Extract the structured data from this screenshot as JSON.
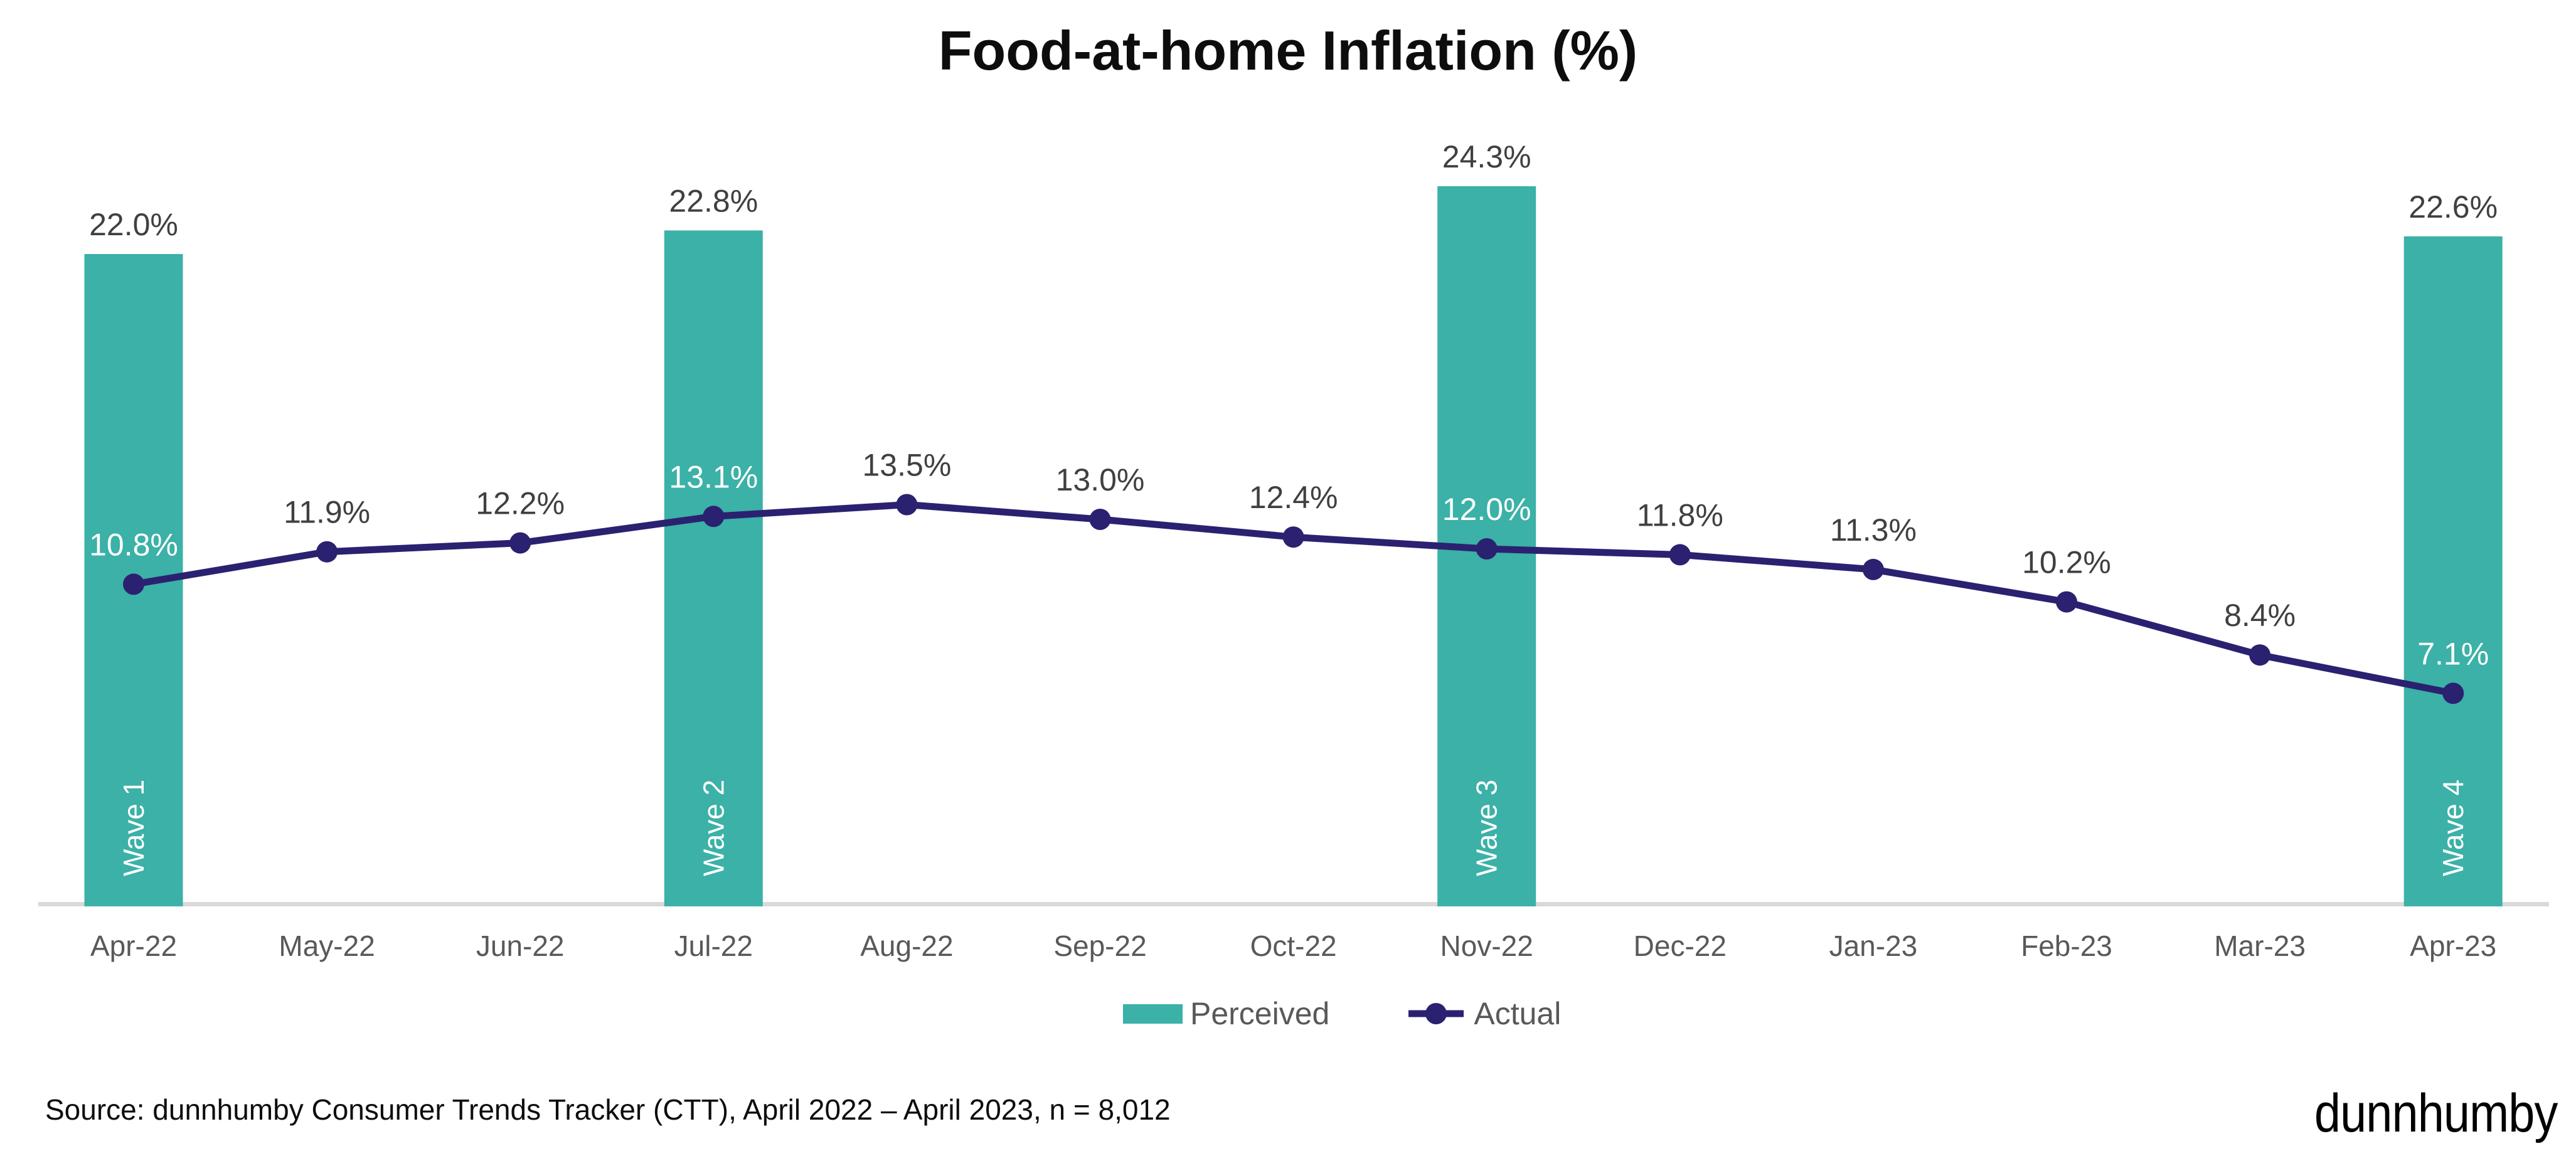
{
  "title": "Food-at-home Inflation (%)",
  "source_note": "Source: dunnhumby Consumer Trends Tracker (CTT), April 2022 – April 2023, n = 8,012",
  "brand_logo": "dunnhumby",
  "legend": {
    "perceived_label": "Perceived",
    "actual_label": "Actual",
    "position": "bottom"
  },
  "colors": {
    "perceived_teal": "#3BB1A7",
    "actual_navy": "#2B2171",
    "data_label_gray": "#404040",
    "axis_label_gray": "#595959",
    "legend_text_gray": "#58595B",
    "axis_line_gray": "#D9D9D9",
    "on_bar_label_white": "#FFFFFF"
  },
  "chart_data": {
    "type": "combo (bar + line)",
    "title": "Food-at-home Inflation (%)",
    "categories": [
      "Apr-22",
      "May-22",
      "Jun-22",
      "Jul-22",
      "Aug-22",
      "Sep-22",
      "Oct-22",
      "Nov-22",
      "Dec-22",
      "Jan-23",
      "Feb-23",
      "Mar-23",
      "Apr-23"
    ],
    "series": [
      {
        "name": "Perceived",
        "type": "bar",
        "color": "#3BB1A7",
        "points": [
          {
            "category": "Apr-22",
            "value": 22.0,
            "label": "22.0%",
            "wave": "Wave 1"
          },
          {
            "category": "Jul-22",
            "value": 22.8,
            "label": "22.8%",
            "wave": "Wave 2"
          },
          {
            "category": "Nov-22",
            "value": 24.3,
            "label": "24.3%",
            "wave": "Wave 3"
          },
          {
            "category": "Apr-23",
            "value": 22.6,
            "label": "22.6%",
            "wave": "Wave 4"
          }
        ]
      },
      {
        "name": "Actual",
        "type": "line",
        "color": "#2B2171",
        "values": [
          10.8,
          11.9,
          12.2,
          13.1,
          13.5,
          13.0,
          12.4,
          12.0,
          11.8,
          11.3,
          10.2,
          8.4,
          7.1
        ],
        "labels": [
          "10.8%",
          "11.9%",
          "12.2%",
          "13.1%",
          "13.5%",
          "13.0%",
          "12.4%",
          "12.0%",
          "11.8%",
          "11.3%",
          "10.2%",
          "8.4%",
          "7.1%"
        ]
      }
    ],
    "value_suffix": "%",
    "ylim": [
      0,
      30
    ],
    "y_axis_visible": false,
    "gridlines": false,
    "legend_position": "bottom"
  }
}
